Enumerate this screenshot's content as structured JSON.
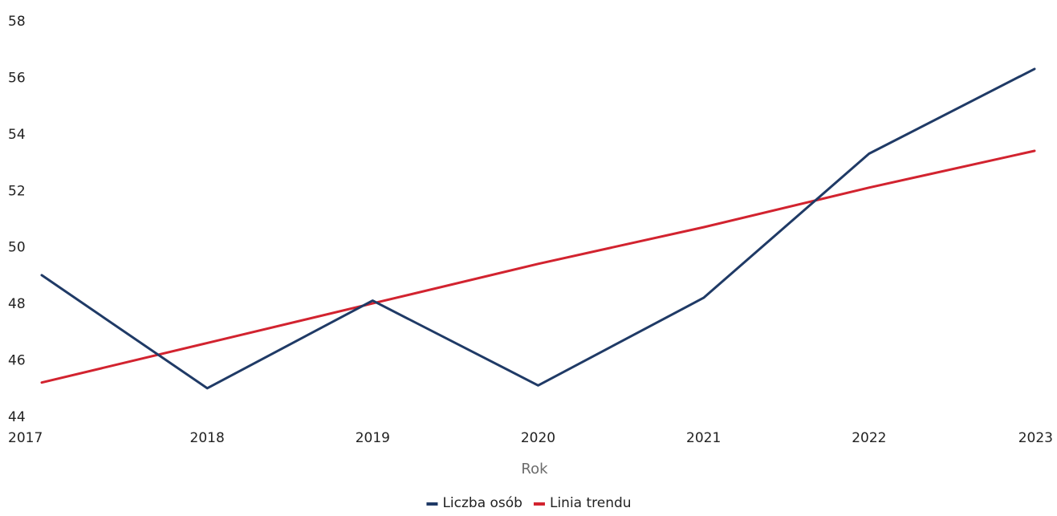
{
  "chart_data": {
    "type": "line",
    "title": "",
    "xlabel": "Rok",
    "ylabel": "",
    "x": [
      "2017",
      "2018",
      "2019",
      "2020",
      "2021",
      "2022",
      "2023"
    ],
    "ylim": [
      44,
      58
    ],
    "yticks": [
      44,
      46,
      48,
      50,
      52,
      54,
      56,
      58
    ],
    "grid": false,
    "legend_position": "bottom",
    "series": [
      {
        "name": "Liczba osób",
        "color": "#1f3a66",
        "values": [
          49.0,
          45.0,
          48.1,
          45.1,
          48.2,
          53.3,
          56.3
        ]
      },
      {
        "name": "Linia trendu",
        "color": "#d2232f",
        "values": [
          45.2,
          46.6,
          48.0,
          49.4,
          50.7,
          52.1,
          53.4
        ]
      }
    ]
  }
}
